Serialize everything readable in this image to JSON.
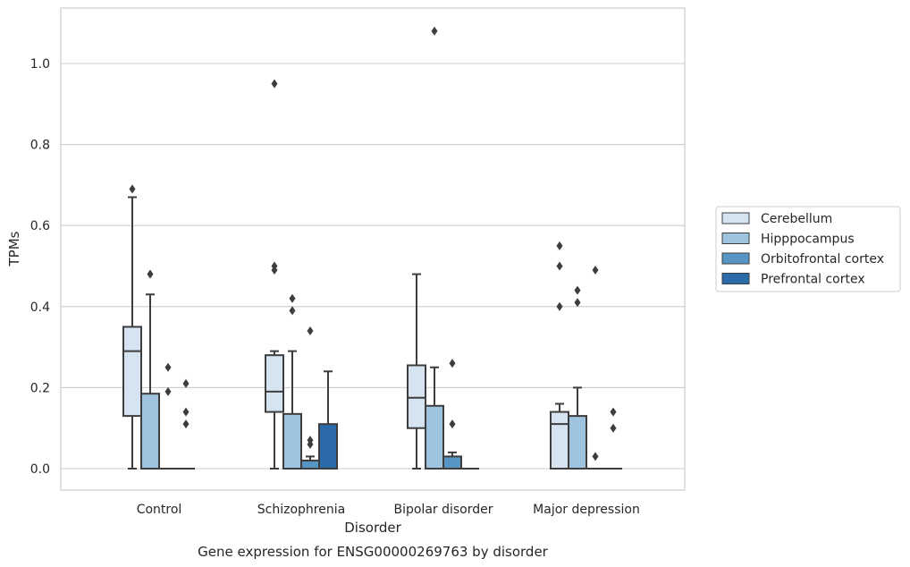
{
  "chart_data": {
    "type": "boxplot",
    "caption": "Gene expression for ENSG00000269763 by disorder",
    "xlabel": "Disorder",
    "ylabel": "TPMs",
    "ylim": [
      -0.05,
      1.14
    ],
    "yticks": [
      0.0,
      0.2,
      0.4,
      0.6,
      0.8,
      1.0
    ],
    "ytick_labels": [
      "0.0",
      "0.2",
      "0.4",
      "0.6",
      "0.8",
      "1.0"
    ],
    "grid": "horizontal",
    "legend_position": "right-outside",
    "categories": [
      "Control",
      "Schizophrenia",
      "Bipolar disorder",
      "Major depression"
    ],
    "series": [
      {
        "name": "Cerebellum",
        "color": "#d6e4f2",
        "boxes": [
          {
            "whislo": 0.0,
            "q1": 0.13,
            "med": 0.29,
            "q3": 0.35,
            "whishi": 0.67,
            "fliers": [
              0.69
            ]
          },
          {
            "whislo": 0.0,
            "q1": 0.14,
            "med": 0.19,
            "q3": 0.28,
            "whishi": 0.29,
            "fliers": [
              0.49,
              0.5,
              0.95
            ]
          },
          {
            "whislo": 0.0,
            "q1": 0.1,
            "med": 0.175,
            "q3": 0.255,
            "whishi": 0.48,
            "fliers": []
          },
          {
            "whislo": 0.0,
            "q1": 0.0,
            "med": 0.11,
            "q3": 0.14,
            "whishi": 0.16,
            "fliers": [
              0.4,
              0.5,
              0.55
            ]
          }
        ]
      },
      {
        "name": "Hipppocampus",
        "color": "#9dc3de",
        "boxes": [
          {
            "whislo": 0.0,
            "q1": 0.0,
            "med": 0.0,
            "q3": 0.185,
            "whishi": 0.43,
            "fliers": [
              0.48
            ]
          },
          {
            "whislo": 0.0,
            "q1": 0.0,
            "med": 0.0,
            "q3": 0.135,
            "whishi": 0.29,
            "fliers": [
              0.39,
              0.42
            ]
          },
          {
            "whislo": 0.0,
            "q1": 0.0,
            "med": 0.0,
            "q3": 0.155,
            "whishi": 0.25,
            "fliers": [
              1.08
            ]
          },
          {
            "whislo": 0.0,
            "q1": 0.0,
            "med": 0.0,
            "q3": 0.13,
            "whishi": 0.2,
            "fliers": [
              0.41,
              0.44
            ]
          }
        ]
      },
      {
        "name": "Orbitofrontal cortex",
        "color": "#5796c4",
        "boxes": [
          {
            "whislo": 0.0,
            "q1": 0.0,
            "med": 0.0,
            "q3": 0.0,
            "whishi": 0.0,
            "fliers": [
              0.19,
              0.25
            ]
          },
          {
            "whislo": 0.0,
            "q1": 0.0,
            "med": 0.0,
            "q3": 0.02,
            "whishi": 0.03,
            "fliers": [
              0.06,
              0.07,
              0.34
            ]
          },
          {
            "whislo": 0.0,
            "q1": 0.0,
            "med": 0.0,
            "q3": 0.03,
            "whishi": 0.04,
            "fliers": [
              0.11,
              0.26
            ]
          },
          {
            "whislo": 0.0,
            "q1": 0.0,
            "med": 0.0,
            "q3": 0.0,
            "whishi": 0.0,
            "fliers": [
              0.03,
              0.49
            ]
          }
        ]
      },
      {
        "name": "Prefrontal cortex",
        "color": "#2c6ba9",
        "boxes": [
          {
            "whislo": 0.0,
            "q1": 0.0,
            "med": 0.0,
            "q3": 0.0,
            "whishi": 0.0,
            "fliers": [
              0.11,
              0.14,
              0.21
            ]
          },
          {
            "whislo": 0.0,
            "q1": 0.0,
            "med": 0.0,
            "q3": 0.11,
            "whishi": 0.24,
            "fliers": []
          },
          {
            "whislo": 0.0,
            "q1": 0.0,
            "med": 0.0,
            "q3": 0.0,
            "whishi": 0.0,
            "fliers": []
          },
          {
            "whislo": 0.0,
            "q1": 0.0,
            "med": 0.0,
            "q3": 0.0,
            "whishi": 0.0,
            "fliers": [
              0.1,
              0.14
            ]
          }
        ]
      }
    ]
  }
}
